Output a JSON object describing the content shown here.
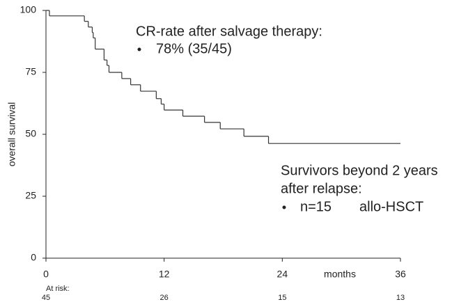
{
  "chart_data": {
    "type": "step",
    "x": [
      0,
      0.35,
      3.9,
      4.3,
      4.7,
      4.8,
      5.0,
      5.9,
      6.2,
      6.4,
      7.7,
      8.6,
      9.6,
      11.2,
      11.7,
      12.0,
      13.9,
      16.1,
      17.7,
      20.1,
      22.6
    ],
    "values": [
      100,
      97.8,
      95.6,
      93.3,
      91.1,
      88.9,
      84.4,
      80.0,
      77.8,
      75.0,
      72.5,
      70.0,
      67.4,
      64.4,
      62.2,
      59.8,
      57.3,
      54.8,
      52.2,
      49.2,
      46.3
    ],
    "color": "#333333",
    "xlim": [
      0,
      36
    ],
    "xticks": [
      0,
      12,
      24,
      36
    ],
    "ylim": [
      0,
      100
    ],
    "yticks": [
      0,
      25,
      50,
      75,
      100
    ],
    "xlabel": "months",
    "ylabel": "overall survival",
    "at_risk": {
      "label": "At risk:",
      "values": [
        45,
        26,
        15,
        13
      ]
    },
    "annotations": {
      "cr_title": "CR-rate after salvage therapy:",
      "cr_value": "78% (35/45)",
      "surv_line1": "Survivors beyond 2 years",
      "surv_line2": "after relapse:",
      "surv_n": "n=15",
      "surv_type": "allo-HSCT"
    }
  }
}
